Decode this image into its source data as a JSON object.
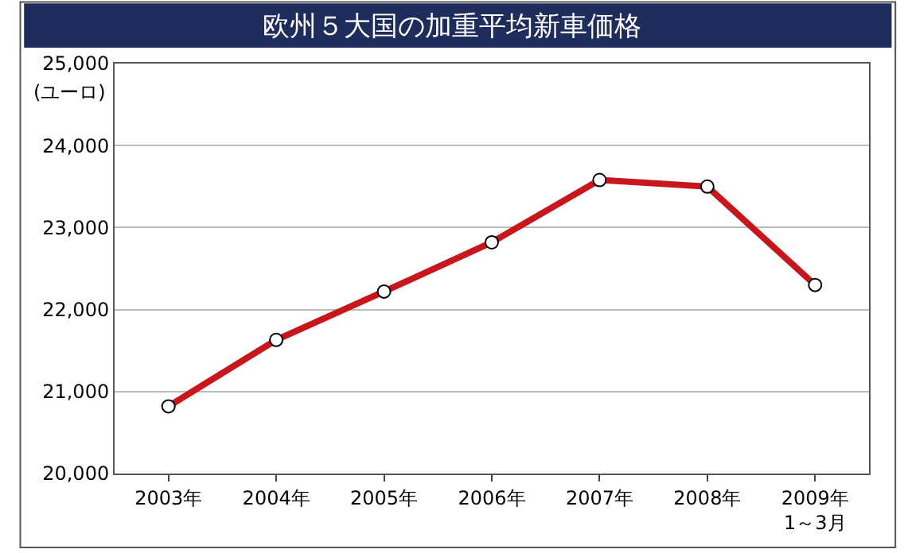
{
  "chart_data": {
    "type": "line",
    "title": "欧州５大国の加重平均新車価格",
    "ylabel": "(ユーロ)",
    "categories": [
      "2003年",
      "2004年",
      "2005年",
      "2006年",
      "2007年",
      "2008年",
      "2009年\n1～3月"
    ],
    "series": [
      {
        "color": "#c8161d",
        "values": [
          20820,
          21630,
          22220,
          22820,
          23580,
          23500,
          22300
        ]
      }
    ],
    "ylim": [
      20000,
      25000
    ],
    "yticks": [
      {
        "value": 20000,
        "label": "20,000"
      },
      {
        "value": 21000,
        "label": "21,000"
      },
      {
        "value": 22000,
        "label": "22,000"
      },
      {
        "value": 23000,
        "label": "23,000"
      },
      {
        "value": 24000,
        "label": "24,000"
      },
      {
        "value": 25000,
        "label": "25,000"
      }
    ],
    "grid": "y",
    "marker": "circle",
    "line_style": "solid"
  }
}
